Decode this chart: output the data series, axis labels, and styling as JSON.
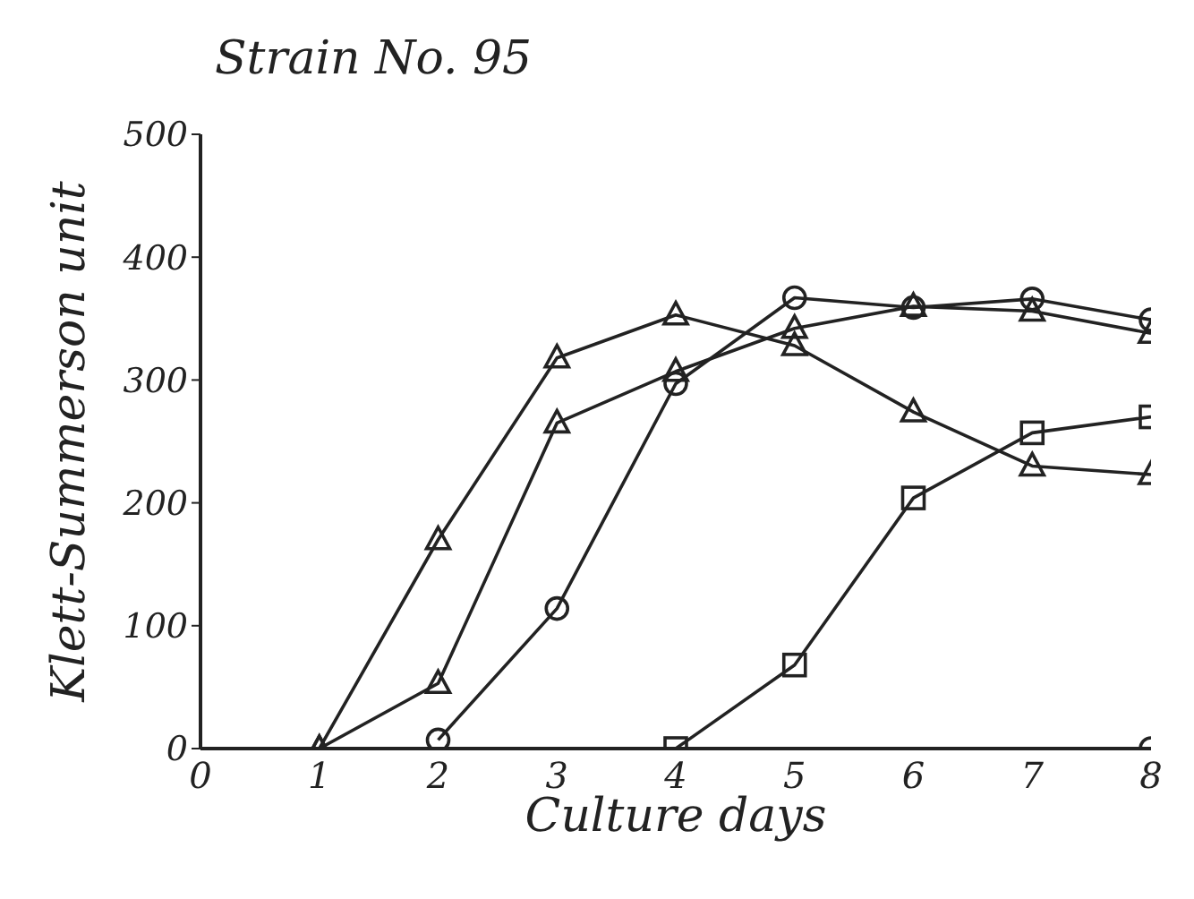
{
  "chart_data": {
    "type": "line",
    "title": "Strain No. 95",
    "xlabel": "Culture days",
    "ylabel": "Klett-Summerson unit",
    "xlim": [
      0,
      8
    ],
    "xticks": [
      0,
      1,
      2,
      3,
      4,
      5,
      6,
      7,
      8
    ],
    "ylim": [
      0,
      500
    ],
    "yticks": [
      0,
      100,
      200,
      300,
      400,
      500
    ],
    "series": [
      {
        "color": "#222222",
        "marker": "triangle",
        "x": [
          1,
          2,
          3,
          4,
          5,
          6,
          7,
          8
        ],
        "values": [
          0,
          170,
          318,
          353,
          328,
          274,
          230,
          223
        ]
      },
      {
        "color": "#222222",
        "marker": "triangle",
        "x": [
          1,
          2,
          3,
          4,
          5,
          6,
          7,
          8
        ],
        "values": [
          0,
          53,
          265,
          307,
          342,
          360,
          356,
          338
        ]
      },
      {
        "color": "#222222",
        "marker": "circle",
        "x": [
          2,
          3,
          4,
          5,
          6,
          7,
          8
        ],
        "values": [
          7,
          114,
          297,
          367,
          359,
          366,
          349
        ]
      },
      {
        "color": "#222222",
        "marker": "square",
        "x": [
          4,
          5,
          6,
          7,
          8
        ],
        "values": [
          0,
          68,
          204,
          257,
          270
        ]
      },
      {
        "color": "#222222",
        "marker": "circle",
        "x": [
          8
        ],
        "values": [
          0
        ]
      }
    ]
  }
}
